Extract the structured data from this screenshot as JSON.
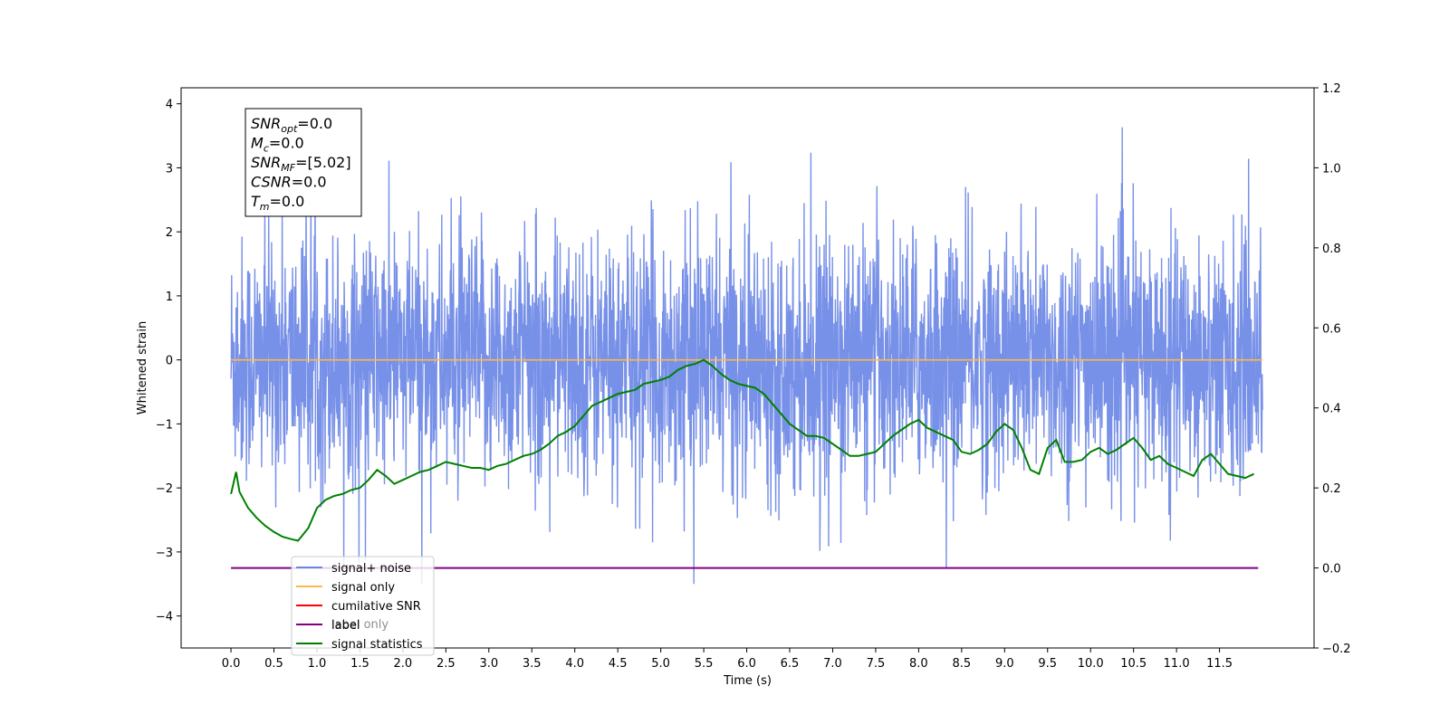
{
  "chart_data": {
    "type": "line",
    "xlabel": "Time (s)",
    "ylabel": "Whitened strain",
    "xlim": [
      -0.58,
      12.6
    ],
    "ylim": [
      -4.5,
      4.25
    ],
    "y2lim": [
      -0.2,
      1.2
    ],
    "xticks": [
      "0.0",
      "0.5",
      "1.0",
      "1.5",
      "2.0",
      "2.5",
      "3.0",
      "3.5",
      "4.0",
      "4.5",
      "5.0",
      "5.5",
      "6.0",
      "6.5",
      "7.0",
      "7.5",
      "8.0",
      "8.5",
      "9.0",
      "9.5",
      "10.0",
      "10.5",
      "11.0",
      "11.5"
    ],
    "yticks": [
      "4",
      "3",
      "2",
      "1",
      "0",
      "−1",
      "−2",
      "−3",
      "−4"
    ],
    "y2ticks": [
      "1.2",
      "1.0",
      "0.8",
      "0.6",
      "0.4",
      "0.2",
      "0.0",
      "−0.2"
    ],
    "grid": false,
    "legend_position": "lower-left",
    "series": [
      {
        "name": "signal+ noise",
        "color": "#6b87e6",
        "axis": "left",
        "kind": "noise",
        "x_range": [
          0.0,
          12.0
        ],
        "y_range": [
          -3.5,
          3.85
        ]
      },
      {
        "name": "signal only",
        "color": "#ffb84d",
        "axis": "left",
        "x": [
          0.0,
          12.0
        ],
        "values": [
          0.0,
          0.0
        ]
      },
      {
        "name": "cumilative SNR",
        "color": "#ff0000",
        "axis": "right",
        "x": [],
        "values": []
      },
      {
        "name": "label",
        "color": "#800080",
        "axis": "right",
        "x": [
          0.0,
          11.95
        ],
        "values": [
          0.0,
          0.0
        ]
      },
      {
        "name": "signal statistics",
        "color": "#008000",
        "axis": "right",
        "x": [
          0.0,
          0.06,
          0.1,
          0.2,
          0.3,
          0.4,
          0.5,
          0.6,
          0.7,
          0.78,
          0.9,
          1.0,
          1.1,
          1.2,
          1.3,
          1.4,
          1.5,
          1.6,
          1.7,
          1.8,
          1.9,
          2.0,
          2.1,
          2.2,
          2.3,
          2.4,
          2.5,
          2.6,
          2.7,
          2.8,
          2.9,
          3.0,
          3.1,
          3.2,
          3.3,
          3.4,
          3.5,
          3.6,
          3.7,
          3.8,
          3.9,
          4.0,
          4.1,
          4.2,
          4.3,
          4.4,
          4.5,
          4.6,
          4.7,
          4.8,
          4.9,
          5.0,
          5.1,
          5.2,
          5.3,
          5.4,
          5.5,
          5.6,
          5.7,
          5.8,
          5.9,
          6.0,
          6.1,
          6.2,
          6.3,
          6.4,
          6.5,
          6.6,
          6.7,
          6.8,
          6.9,
          7.0,
          7.1,
          7.2,
          7.3,
          7.4,
          7.5,
          7.6,
          7.7,
          7.8,
          7.9,
          8.0,
          8.1,
          8.2,
          8.3,
          8.4,
          8.5,
          8.6,
          8.7,
          8.8,
          8.9,
          9.0,
          9.1,
          9.2,
          9.3,
          9.4,
          9.5,
          9.6,
          9.7,
          9.8,
          9.9,
          10.0,
          10.1,
          10.2,
          10.3,
          10.4,
          10.5,
          10.6,
          10.7,
          10.8,
          10.9,
          11.0,
          11.1,
          11.2,
          11.3,
          11.4,
          11.5,
          11.6,
          11.7,
          11.8,
          11.9
        ],
        "values": [
          0.185,
          0.24,
          0.19,
          0.15,
          0.125,
          0.105,
          0.09,
          0.078,
          0.072,
          0.068,
          0.1,
          0.15,
          0.17,
          0.18,
          0.185,
          0.195,
          0.2,
          0.22,
          0.245,
          0.23,
          0.21,
          0.22,
          0.23,
          0.24,
          0.245,
          0.255,
          0.265,
          0.26,
          0.255,
          0.25,
          0.25,
          0.245,
          0.255,
          0.26,
          0.27,
          0.28,
          0.285,
          0.295,
          0.31,
          0.33,
          0.34,
          0.355,
          0.38,
          0.405,
          0.415,
          0.425,
          0.435,
          0.44,
          0.445,
          0.46,
          0.465,
          0.47,
          0.478,
          0.495,
          0.505,
          0.51,
          0.52,
          0.505,
          0.485,
          0.47,
          0.46,
          0.455,
          0.45,
          0.435,
          0.41,
          0.385,
          0.36,
          0.345,
          0.33,
          0.33,
          0.325,
          0.31,
          0.295,
          0.28,
          0.28,
          0.285,
          0.29,
          0.31,
          0.33,
          0.345,
          0.36,
          0.37,
          0.35,
          0.34,
          0.33,
          0.32,
          0.29,
          0.285,
          0.295,
          0.31,
          0.34,
          0.36,
          0.345,
          0.3,
          0.245,
          0.235,
          0.3,
          0.32,
          0.265,
          0.265,
          0.27,
          0.29,
          0.3,
          0.285,
          0.295,
          0.31,
          0.325,
          0.3,
          0.27,
          0.28,
          0.26,
          0.25,
          0.24,
          0.23,
          0.27,
          0.285,
          0.26,
          0.235,
          0.23,
          0.225,
          0.235
        ]
      }
    ]
  },
  "stats_box": {
    "lines": [
      {
        "main": "SNR",
        "sub": "opt",
        "rest": "=0.0"
      },
      {
        "main": "M",
        "sub": "c",
        "rest": "=0.0"
      },
      {
        "main": "SNR",
        "sub": "MF",
        "rest": "=[5.02]"
      },
      {
        "main": "CSNR",
        "sub": "",
        "rest": "=0.0"
      },
      {
        "main": "T",
        "sub": "m",
        "rest": "=0.0"
      }
    ]
  },
  "legend_overlap_text": "label only"
}
